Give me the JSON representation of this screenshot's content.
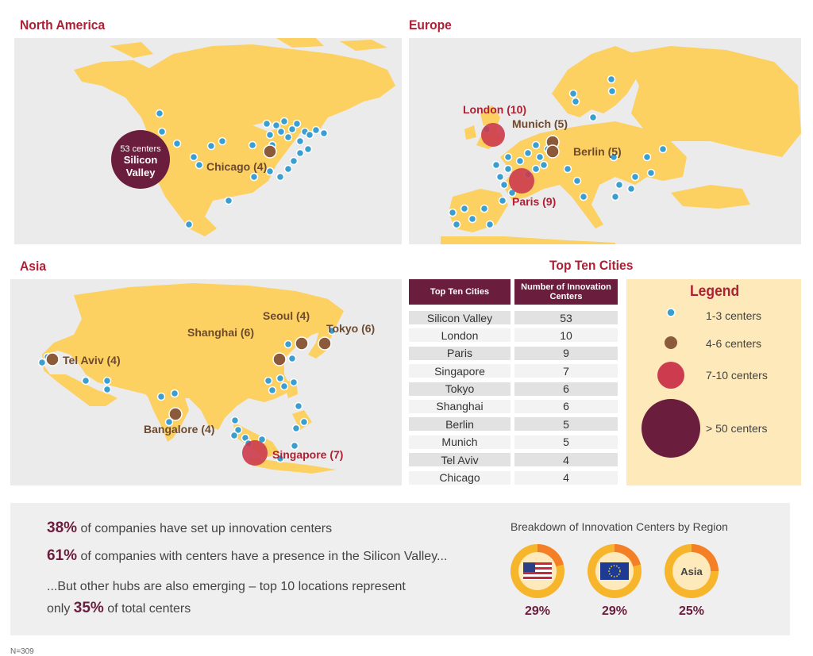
{
  "regions": {
    "north_america": "North America",
    "europe": "Europe",
    "asia": "Asia"
  },
  "north_america": {
    "silicon_valley_count": "53 centers",
    "silicon_valley_name_1": "Silicon",
    "silicon_valley_name_2": "Valley",
    "chicago": "Chicago (4)"
  },
  "europe": {
    "london": "London (10)",
    "munich": "Munich (5)",
    "berlin": "Berlin (5)",
    "paris": "Paris (9)"
  },
  "asia": {
    "seoul": "Seoul (4)",
    "tokyo": "Tokyo (6)",
    "shanghai": "Shanghai (6)",
    "tel_aviv": "Tel Aviv (4)",
    "bangalore": "Bangalore (4)",
    "singapore": "Singapore (7)"
  },
  "top_ten": {
    "title": "Top Ten Cities",
    "col_city": "Top Ten Cities",
    "col_count": "Number of Innovation Centers",
    "rows": [
      {
        "city": "Silicon Valley",
        "count": "53"
      },
      {
        "city": "London",
        "count": "10"
      },
      {
        "city": "Paris",
        "count": "9"
      },
      {
        "city": "Singapore",
        "count": "7"
      },
      {
        "city": "Tokyo",
        "count": "6"
      },
      {
        "city": "Shanghai",
        "count": "6"
      },
      {
        "city": "Berlin",
        "count": "5"
      },
      {
        "city": "Munich",
        "count": "5"
      },
      {
        "city": "Tel Aviv",
        "count": "4"
      },
      {
        "city": "Chicago",
        "count": "4"
      }
    ]
  },
  "legend": {
    "title": "Legend",
    "items": [
      "1-3 centers",
      "4-6 centers",
      "7-10 centers",
      "> 50 centers"
    ]
  },
  "stats": {
    "s1_pct": "38%",
    "s1_text": " of companies have set up innovation centers",
    "s2_pct": "61%",
    "s2_text": " of companies with centers have a presence in the Silicon Valley...",
    "s3_text_a": "...But other hubs are also emerging – top 10 locations represent",
    "s3_text_b": "only ",
    "s3_pct": "35%",
    "s3_text_c": " of total centers"
  },
  "breakdown": {
    "title": "Breakdown of Innovation Centers by Region",
    "regions": [
      {
        "label": "",
        "icon": "us-flag-icon",
        "pct": "29%",
        "value": 0.29
      },
      {
        "label": "",
        "icon": "eu-flag-icon",
        "pct": "29%",
        "value": 0.29
      },
      {
        "label": "Asia",
        "icon": "",
        "pct": "25%",
        "value": 0.25
      }
    ]
  },
  "footnote": "N=309",
  "colors": {
    "land": "#fcd061",
    "small_dot": "#3a9fd0",
    "medium_dot": "#8a5a3a",
    "large_dot": "#cc3b4e",
    "xl_dot": "#6a1d3c",
    "title_red": "#b02035",
    "donut_outer": "#f7b52c",
    "donut_slice": "#f47f27"
  }
}
